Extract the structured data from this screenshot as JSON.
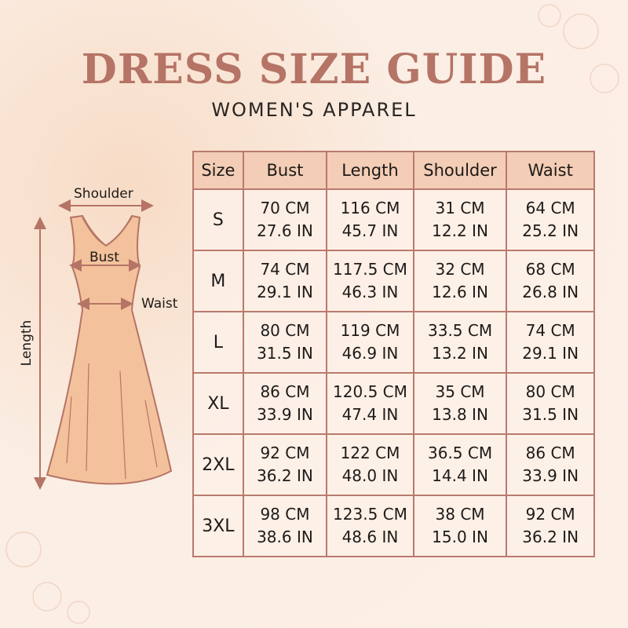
{
  "header": {
    "title": "DRESS SIZE GUIDE",
    "subtitle": "WOMEN'S APPAREL"
  },
  "diagram": {
    "labels": {
      "shoulder": "Shoulder",
      "bust": "Bust",
      "waist": "Waist",
      "length": "Length"
    }
  },
  "colors": {
    "accent": "#b57466",
    "dress": "#f3c29c",
    "border": "#b97a6e",
    "header_bg": "#f3cdb5"
  },
  "table": {
    "columns": [
      "Size",
      "Bust",
      "Length",
      "Shoulder",
      "Waist"
    ],
    "rows": [
      {
        "size": "S",
        "bust": [
          "70 CM",
          "27.6 IN"
        ],
        "length": [
          "116 CM",
          "45.7 IN"
        ],
        "shoulder": [
          "31 CM",
          "12.2 IN"
        ],
        "waist": [
          "64 CM",
          "25.2 IN"
        ]
      },
      {
        "size": "M",
        "bust": [
          "74 CM",
          "29.1 IN"
        ],
        "length": [
          "117.5 CM",
          "46.3 IN"
        ],
        "shoulder": [
          "32 CM",
          "12.6 IN"
        ],
        "waist": [
          "68 CM",
          "26.8 IN"
        ]
      },
      {
        "size": "L",
        "bust": [
          "80 CM",
          "31.5 IN"
        ],
        "length": [
          "119 CM",
          "46.9 IN"
        ],
        "shoulder": [
          "33.5 CM",
          "13.2 IN"
        ],
        "waist": [
          "74 CM",
          "29.1 IN"
        ]
      },
      {
        "size": "XL",
        "bust": [
          "86 CM",
          "33.9 IN"
        ],
        "length": [
          "120.5 CM",
          "47.4 IN"
        ],
        "shoulder": [
          "35 CM",
          "13.8 IN"
        ],
        "waist": [
          "80 CM",
          "31.5 IN"
        ]
      },
      {
        "size": "2XL",
        "bust": [
          "92 CM",
          "36.2 IN"
        ],
        "length": [
          "122 CM",
          "48.0 IN"
        ],
        "shoulder": [
          "36.5 CM",
          "14.4 IN"
        ],
        "waist": [
          "86 CM",
          "33.9 IN"
        ]
      },
      {
        "size": "3XL",
        "bust": [
          "98 CM",
          "38.6 IN"
        ],
        "length": [
          "123.5 CM",
          "48.6 IN"
        ],
        "shoulder": [
          "38 CM",
          "15.0 IN"
        ],
        "waist": [
          "92 CM",
          "36.2 IN"
        ]
      }
    ]
  }
}
